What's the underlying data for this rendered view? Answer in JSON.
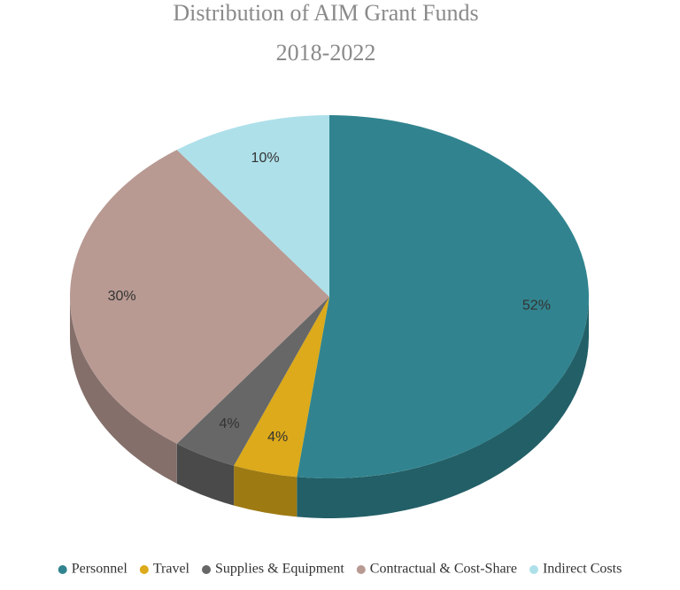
{
  "chart_data": {
    "type": "pie3d",
    "title": "Distribution of AIM Grant Funds",
    "subtitle": "2018-2022",
    "categories": [
      "Personnel",
      "Travel",
      "Supplies & Equipment",
      "Contractual & Cost-Share",
      "Indirect Costs"
    ],
    "values": [
      52,
      4,
      4,
      30,
      10
    ],
    "value_labels": [
      "52%",
      "4%",
      "4%",
      "30%",
      "10%"
    ],
    "colors": [
      "#31848f",
      "#dcaa1a",
      "#676767",
      "#b89a93",
      "#aee0ea"
    ],
    "legend": "bottom"
  }
}
